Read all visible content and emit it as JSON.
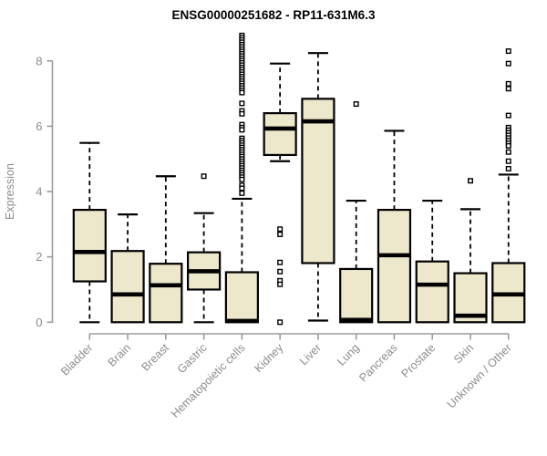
{
  "chart_data": {
    "type": "boxplot",
    "title": "ENSG00000251682 - RP11-631M6.3",
    "ylabel": "Expression",
    "xlabel": "",
    "ylim": [
      0,
      8
    ],
    "yticks": [
      0,
      2,
      4,
      6,
      8
    ],
    "grid": false,
    "legend": "none",
    "categories": [
      "Bladder",
      "Brain",
      "Breast",
      "Gastric",
      "Hematopoietic cells",
      "Kidney",
      "Liver",
      "Lung",
      "Pancreas",
      "Prostate",
      "Skin",
      "Unknown / Other"
    ],
    "boxes": [
      {
        "whisker_low": 0.0,
        "q1": 1.25,
        "median": 2.15,
        "q3": 3.44,
        "whisker_high": 5.49,
        "outliers": []
      },
      {
        "whisker_low": 0.0,
        "q1": 0.0,
        "median": 0.85,
        "q3": 2.18,
        "whisker_high": 3.3,
        "outliers": []
      },
      {
        "whisker_low": 0.0,
        "q1": 0.0,
        "median": 1.13,
        "q3": 1.79,
        "whisker_high": 4.47,
        "outliers": []
      },
      {
        "whisker_low": 0.0,
        "q1": 1.0,
        "median": 1.56,
        "q3": 2.14,
        "whisker_high": 3.34,
        "outliers": [
          4.47
        ]
      },
      {
        "whisker_low": 0.0,
        "q1": 0.0,
        "median": 0.04,
        "q3": 1.53,
        "whisker_high": 3.78,
        "outliers": [
          8.78,
          8.71,
          8.64,
          8.57,
          8.5,
          8.43,
          8.36,
          8.29,
          8.22,
          8.15,
          8.08,
          8.01,
          7.94,
          7.87,
          7.8,
          7.73,
          7.66,
          7.59,
          7.52,
          7.45,
          7.38,
          7.31,
          7.24,
          7.17,
          7.1,
          7.03,
          6.7,
          6.47,
          6.38,
          6.05,
          5.96,
          5.89,
          5.63,
          5.56,
          5.49,
          5.42,
          5.35,
          5.28,
          5.21,
          5.14,
          5.07,
          5.0,
          4.93,
          4.86,
          4.79,
          4.72,
          4.65,
          4.58,
          4.51,
          4.44,
          4.37,
          4.19,
          4.1,
          3.95
        ]
      },
      {
        "whisker_low": 4.93,
        "q1": 5.12,
        "median": 5.93,
        "q3": 6.4,
        "whisker_high": 7.92,
        "outliers": [
          2.85,
          2.69,
          1.83,
          1.55,
          1.27,
          1.16,
          0.0
        ]
      },
      {
        "whisker_low": 0.05,
        "q1": 1.81,
        "median": 6.15,
        "q3": 6.84,
        "whisker_high": 8.24,
        "outliers": []
      },
      {
        "whisker_low": 0.0,
        "q1": 0.0,
        "median": 0.07,
        "q3": 1.63,
        "whisker_high": 3.72,
        "outliers": [
          6.68
        ]
      },
      {
        "whisker_low": 0.0,
        "q1": 0.0,
        "median": 2.05,
        "q3": 3.44,
        "whisker_high": 5.86,
        "outliers": []
      },
      {
        "whisker_low": 0.0,
        "q1": 0.0,
        "median": 1.15,
        "q3": 1.86,
        "whisker_high": 3.72,
        "outliers": []
      },
      {
        "whisker_low": 0.0,
        "q1": 0.0,
        "median": 0.2,
        "q3": 1.5,
        "whisker_high": 3.46,
        "outliers": [
          4.33
        ]
      },
      {
        "whisker_low": 0.0,
        "q1": 0.0,
        "median": 0.85,
        "q3": 1.81,
        "whisker_high": 4.52,
        "outliers": [
          8.3,
          7.92,
          7.3,
          7.15,
          6.33,
          5.96,
          5.88,
          5.8,
          5.72,
          5.64,
          5.56,
          5.48,
          5.4,
          5.21,
          4.93,
          4.7
        ]
      }
    ],
    "colors": {
      "box_fill": "#EDE7CC",
      "box_border": "#000000",
      "median": "#000000",
      "whisker": "#000000",
      "outlier_fill": "#FFFFFF",
      "outlier_border": "#000000",
      "axis": "#9B9B9B",
      "tick_label": "#8C8C8C",
      "title": "#000000",
      "background": "#FFFFFF"
    }
  }
}
